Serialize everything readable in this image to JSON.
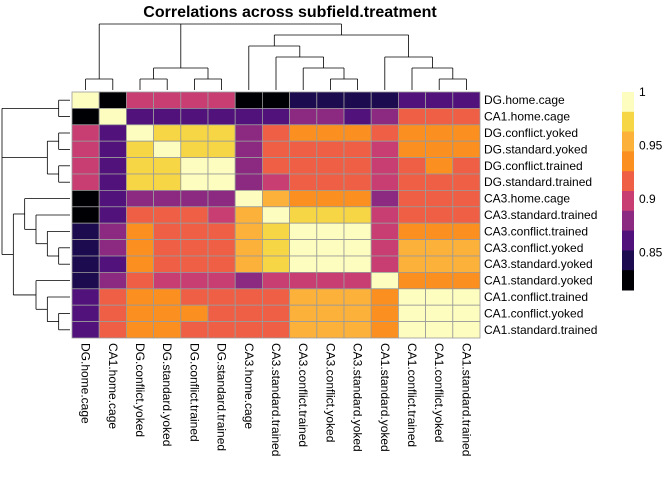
{
  "chart_data": {
    "type": "heatmap",
    "title": "Correlations across subfield.treatment",
    "row_labels": [
      "DG.home.cage",
      "CA1.home.cage",
      "DG.conflict.yoked",
      "DG.standard.yoked",
      "DG.conflict.trained",
      "DG.standard.trained",
      "CA3.home.cage",
      "CA3.standard.trained",
      "CA3.conflict.trained",
      "CA3.conflict.yoked",
      "CA3.standard.yoked",
      "CA1.standard.yoked",
      "CA1.conflict.trained",
      "CA1.conflict.yoked",
      "CA1.standard.trained"
    ],
    "col_labels": [
      "DG.home.cage",
      "CA1.home.cage",
      "DG.conflict.yoked",
      "DG.standard.yoked",
      "DG.conflict.trained",
      "DG.standard.trained",
      "CA3.home.cage",
      "CA3.standard.trained",
      "CA3.conflict.trained",
      "CA3.conflict.yoked",
      "CA3.standard.yoked",
      "CA1.standard.yoked",
      "CA1.conflict.trained",
      "CA1.conflict.yoked",
      "CA1.standard.trained"
    ],
    "values": [
      [
        1.0,
        0.82,
        0.89,
        0.89,
        0.89,
        0.89,
        0.82,
        0.83,
        0.84,
        0.85,
        0.84,
        0.85,
        0.86,
        0.86,
        0.86
      ],
      [
        0.82,
        1.0,
        0.87,
        0.87,
        0.87,
        0.87,
        0.87,
        0.87,
        0.88,
        0.88,
        0.87,
        0.88,
        0.91,
        0.91,
        0.91
      ],
      [
        0.89,
        0.87,
        1.0,
        0.97,
        0.97,
        0.97,
        0.88,
        0.92,
        0.93,
        0.93,
        0.93,
        0.91,
        0.94,
        0.93,
        0.93
      ],
      [
        0.89,
        0.87,
        0.97,
        1.0,
        0.97,
        0.98,
        0.88,
        0.91,
        0.92,
        0.92,
        0.92,
        0.9,
        0.93,
        0.93,
        0.93
      ],
      [
        0.89,
        0.87,
        0.97,
        0.97,
        1.0,
        0.99,
        0.88,
        0.91,
        0.92,
        0.92,
        0.92,
        0.9,
        0.92,
        0.93,
        0.92
      ],
      [
        0.89,
        0.87,
        0.97,
        0.98,
        0.99,
        1.0,
        0.88,
        0.9,
        0.91,
        0.92,
        0.91,
        0.9,
        0.92,
        0.91,
        0.92
      ],
      [
        0.82,
        0.87,
        0.88,
        0.88,
        0.88,
        0.88,
        1.0,
        0.96,
        0.94,
        0.94,
        0.94,
        0.88,
        0.91,
        0.91,
        0.92
      ],
      [
        0.83,
        0.87,
        0.92,
        0.91,
        0.91,
        0.9,
        0.96,
        1.0,
        0.98,
        0.98,
        0.97,
        0.89,
        0.92,
        0.92,
        0.92
      ],
      [
        0.84,
        0.88,
        0.93,
        0.92,
        0.92,
        0.91,
        0.95,
        0.98,
        1.0,
        0.99,
        0.99,
        0.9,
        0.94,
        0.94,
        0.94
      ],
      [
        0.84,
        0.88,
        0.93,
        0.92,
        0.92,
        0.92,
        0.95,
        0.98,
        0.99,
        1.0,
        0.99,
        0.9,
        0.95,
        0.95,
        0.95
      ],
      [
        0.84,
        0.87,
        0.93,
        0.92,
        0.92,
        0.91,
        0.95,
        0.98,
        0.99,
        0.99,
        1.0,
        0.9,
        0.95,
        0.95,
        0.95
      ],
      [
        0.85,
        0.88,
        0.91,
        0.9,
        0.9,
        0.9,
        0.88,
        0.89,
        0.9,
        0.9,
        0.9,
        1.0,
        0.94,
        0.94,
        0.94
      ],
      [
        0.86,
        0.91,
        0.94,
        0.93,
        0.92,
        0.92,
        0.91,
        0.92,
        0.95,
        0.95,
        0.95,
        0.94,
        1.0,
        0.99,
        0.99
      ],
      [
        0.86,
        0.91,
        0.93,
        0.93,
        0.93,
        0.91,
        0.91,
        0.92,
        0.95,
        0.95,
        0.95,
        0.94,
        0.99,
        1.0,
        0.99
      ],
      [
        0.86,
        0.91,
        0.93,
        0.93,
        0.92,
        0.92,
        0.92,
        0.92,
        0.95,
        0.95,
        0.95,
        0.94,
        0.99,
        0.99,
        1.0
      ]
    ],
    "legend": {
      "ticks": [
        1,
        0.95,
        0.9,
        0.85
      ],
      "tick_labels": [
        "1",
        "0.95",
        "0.9",
        "0.85"
      ],
      "range": [
        0.815,
        1.0
      ]
    },
    "palette": [
      "#000004",
      "#1c0c4f",
      "#51127c",
      "#8c2980",
      "#c83e73",
      "#ef5f45",
      "#fb8f1f",
      "#fbb13a",
      "#f6d645",
      "#fcfdbf"
    ]
  }
}
